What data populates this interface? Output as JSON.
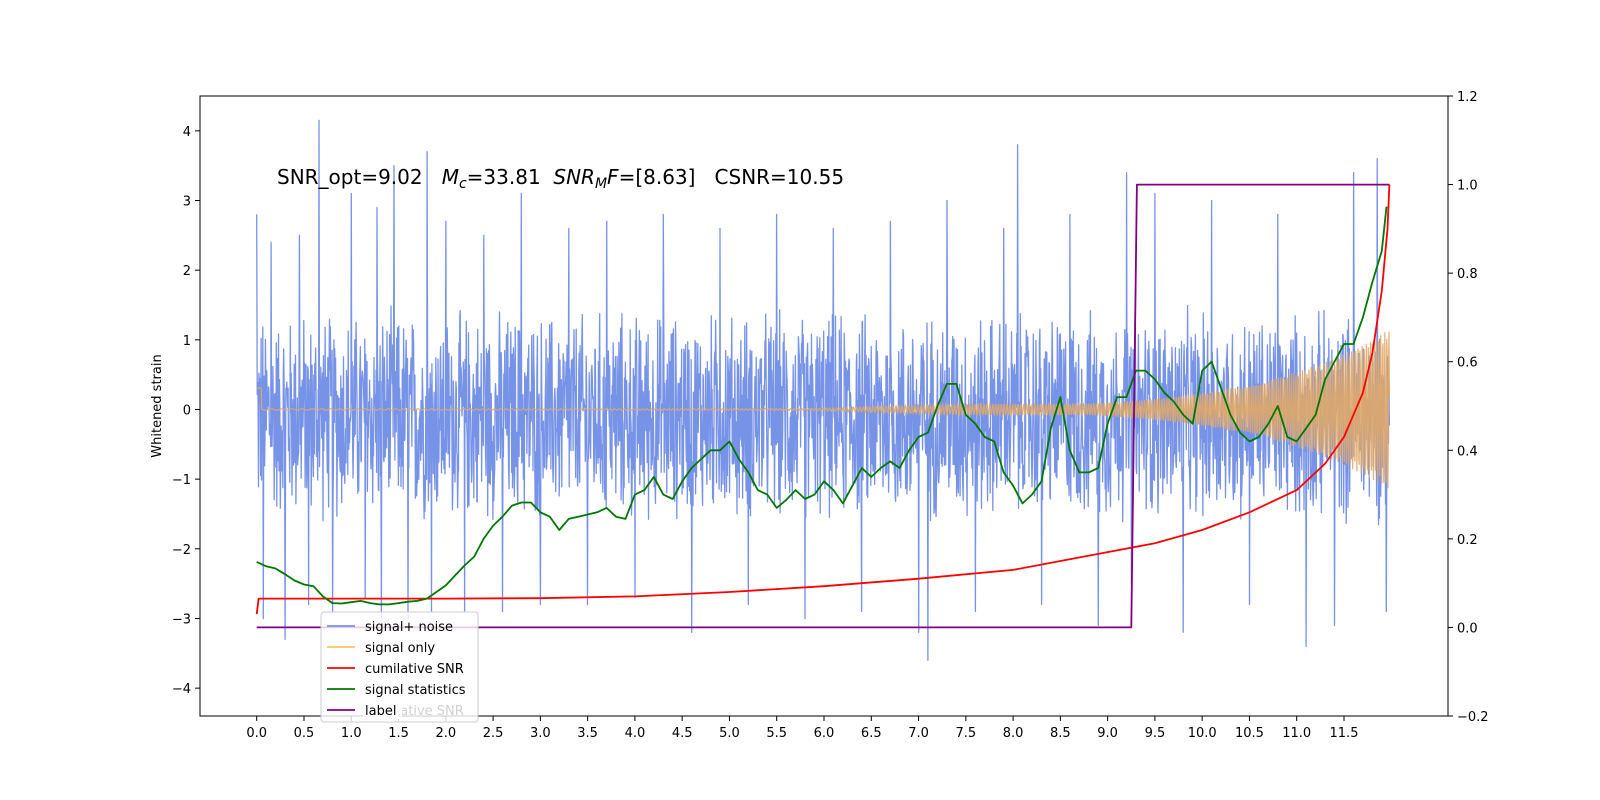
{
  "chart_data": {
    "type": "line",
    "title": "",
    "annotation": {
      "parts": [
        {
          "text": "SNR_opt=9.02   "
        },
        {
          "text": "M",
          "italic": true
        },
        {
          "text": "c",
          "italic": true,
          "sub": true
        },
        {
          "text": "=33.81  "
        },
        {
          "text": "SNR",
          "italic": true
        },
        {
          "text": "M",
          "italic": true,
          "sub": true
        },
        {
          "text": "F",
          "italic": true
        },
        {
          "text": "=[8.63]   CSNR=10.55"
        }
      ]
    },
    "xlabel": "",
    "ylabel": "Whitened strain",
    "y2label": "",
    "xlim": [
      -0.6,
      12.6
    ],
    "ylim": [
      -4.4,
      4.5
    ],
    "y2lim": [
      -0.2,
      1.2
    ],
    "xticks": [
      "0.0",
      "0.5",
      "1.0",
      "1.5",
      "2.0",
      "2.5",
      "3.0",
      "3.5",
      "4.0",
      "4.5",
      "5.0",
      "5.5",
      "6.0",
      "6.5",
      "7.0",
      "7.5",
      "8.0",
      "8.5",
      "9.0",
      "9.5",
      "10.0",
      "10.5",
      "11.0",
      "11.5"
    ],
    "yticks": [
      "−4",
      "−3",
      "−2",
      "−1",
      "0",
      "1",
      "2",
      "3",
      "4"
    ],
    "y2ticks": [
      "−0.2",
      "0.0",
      "0.2",
      "0.4",
      "0.6",
      "0.8",
      "1.0",
      "1.2"
    ],
    "grid": false,
    "legend_position": "lower-left",
    "legend": [
      {
        "label": "signal+ noise",
        "color": "#7793e8"
      },
      {
        "label": "signal only",
        "color": "#ffc266"
      },
      {
        "label": "cumilative SNR",
        "color": "#ff0000"
      },
      {
        "label": "signal statistics",
        "color": "#007700"
      },
      {
        "label": "label",
        "color": "#800080"
      }
    ],
    "hidden_legend_text": "cumilative SNR",
    "series": [
      {
        "name": "signal+ noise",
        "axis": "left",
        "color": "#7793e8",
        "style": "noise",
        "x_range": [
          0.0,
          11.98
        ],
        "typical_range": [
          -1.6,
          1.4
        ],
        "spikes_x": [
          0.0,
          0.07,
          0.15,
          0.3,
          0.45,
          0.55,
          0.66,
          0.8,
          1.0,
          1.15,
          1.27,
          1.32,
          1.45,
          1.6,
          1.8,
          1.85,
          2.0,
          2.2,
          2.4,
          2.6,
          2.8,
          3.0,
          3.3,
          3.5,
          3.7,
          4.0,
          4.3,
          4.6,
          4.9,
          5.2,
          5.5,
          5.8,
          6.1,
          6.4,
          6.7,
          7.0,
          7.1,
          7.3,
          7.6,
          7.9,
          8.05,
          8.3,
          8.6,
          8.9,
          9.2,
          9.25,
          9.5,
          9.8,
          10.1,
          10.5,
          10.8,
          11.1,
          11.4,
          11.6,
          11.85,
          11.95
        ],
        "spikes_y": [
          2.8,
          -3.0,
          2.4,
          -3.3,
          2.5,
          -2.8,
          4.15,
          -2.9,
          3.1,
          -2.7,
          2.9,
          -3.0,
          3.5,
          -3.0,
          3.7,
          -2.9,
          2.7,
          -2.9,
          2.5,
          -2.9,
          3.1,
          -2.8,
          2.6,
          -2.8,
          2.7,
          -2.7,
          2.8,
          -3.2,
          2.6,
          -2.8,
          2.8,
          -3.0,
          2.6,
          -2.9,
          2.7,
          -3.2,
          -3.6,
          3.0,
          -2.9,
          2.6,
          3.8,
          -2.8,
          2.8,
          -3.1,
          3.4,
          -2.5,
          3.1,
          -3.2,
          3.0,
          -2.8,
          2.8,
          -3.4,
          -3.1,
          3.4,
          3.6,
          -2.9
        ]
      },
      {
        "name": "signal only",
        "axis": "left",
        "color": "#e0a868",
        "style": "chirp",
        "x_range": [
          0.0,
          11.98
        ],
        "amplitude_start": 0.01,
        "amplitude_end": 1.15,
        "visible_oscillation_from": 5.5
      },
      {
        "name": "cumilative SNR",
        "axis": "right",
        "color": "#ff0000",
        "x": [
          0.0,
          0.02,
          1.0,
          2.0,
          3.0,
          4.0,
          5.0,
          6.0,
          7.0,
          8.0,
          9.0,
          9.5,
          10.0,
          10.5,
          11.0,
          11.3,
          11.5,
          11.7,
          11.8,
          11.9,
          11.96,
          11.98
        ],
        "values": [
          0.03,
          0.065,
          0.065,
          0.065,
          0.066,
          0.07,
          0.08,
          0.093,
          0.11,
          0.13,
          0.17,
          0.19,
          0.22,
          0.26,
          0.31,
          0.37,
          0.43,
          0.53,
          0.62,
          0.76,
          0.9,
          1.0
        ]
      },
      {
        "name": "signal statistics",
        "axis": "right",
        "color": "#007700",
        "x": [
          0.0,
          0.1,
          0.2,
          0.3,
          0.4,
          0.5,
          0.6,
          0.7,
          0.8,
          0.9,
          1.0,
          1.1,
          1.2,
          1.3,
          1.4,
          1.5,
          1.6,
          1.7,
          1.8,
          1.9,
          2.0,
          2.1,
          2.2,
          2.3,
          2.4,
          2.5,
          2.6,
          2.7,
          2.8,
          2.9,
          3.0,
          3.1,
          3.2,
          3.3,
          3.4,
          3.5,
          3.6,
          3.7,
          3.8,
          3.9,
          4.0,
          4.1,
          4.2,
          4.3,
          4.4,
          4.5,
          4.6,
          4.7,
          4.8,
          4.9,
          5.0,
          5.1,
          5.2,
          5.3,
          5.4,
          5.5,
          5.6,
          5.7,
          5.8,
          5.9,
          6.0,
          6.1,
          6.2,
          6.3,
          6.4,
          6.5,
          6.6,
          6.7,
          6.8,
          6.9,
          7.0,
          7.1,
          7.2,
          7.3,
          7.4,
          7.5,
          7.6,
          7.7,
          7.8,
          7.9,
          8.0,
          8.1,
          8.2,
          8.3,
          8.4,
          8.5,
          8.6,
          8.7,
          8.8,
          8.9,
          9.0,
          9.1,
          9.2,
          9.3,
          9.4,
          9.5,
          9.6,
          9.7,
          9.8,
          9.9,
          10.0,
          10.1,
          10.2,
          10.3,
          10.4,
          10.5,
          10.6,
          10.7,
          10.8,
          10.9,
          11.0,
          11.1,
          11.2,
          11.3,
          11.4,
          11.5,
          11.6,
          11.7,
          11.8,
          11.9,
          11.95
        ],
        "values": [
          0.148,
          0.138,
          0.133,
          0.12,
          0.106,
          0.097,
          0.093,
          0.07,
          0.055,
          0.054,
          0.057,
          0.06,
          0.055,
          0.052,
          0.052,
          0.055,
          0.058,
          0.06,
          0.065,
          0.08,
          0.095,
          0.118,
          0.14,
          0.16,
          0.2,
          0.23,
          0.25,
          0.275,
          0.282,
          0.282,
          0.26,
          0.25,
          0.22,
          0.245,
          0.25,
          0.255,
          0.26,
          0.27,
          0.25,
          0.245,
          0.3,
          0.31,
          0.34,
          0.3,
          0.29,
          0.33,
          0.36,
          0.38,
          0.4,
          0.4,
          0.42,
          0.38,
          0.35,
          0.31,
          0.3,
          0.27,
          0.288,
          0.31,
          0.29,
          0.3,
          0.33,
          0.31,
          0.28,
          0.32,
          0.36,
          0.34,
          0.36,
          0.375,
          0.36,
          0.4,
          0.43,
          0.44,
          0.5,
          0.55,
          0.55,
          0.48,
          0.46,
          0.43,
          0.42,
          0.35,
          0.32,
          0.28,
          0.3,
          0.33,
          0.45,
          0.52,
          0.4,
          0.35,
          0.35,
          0.36,
          0.46,
          0.52,
          0.52,
          0.58,
          0.58,
          0.56,
          0.53,
          0.51,
          0.48,
          0.46,
          0.58,
          0.6,
          0.54,
          0.48,
          0.44,
          0.42,
          0.43,
          0.46,
          0.5,
          0.43,
          0.42,
          0.45,
          0.48,
          0.56,
          0.6,
          0.64,
          0.64,
          0.7,
          0.78,
          0.85,
          0.95
        ]
      },
      {
        "name": "label",
        "axis": "right",
        "color": "#800080",
        "x": [
          0.0,
          9.25,
          9.31,
          11.98
        ],
        "values": [
          0.0,
          0.0,
          1.0,
          1.0
        ]
      }
    ]
  }
}
